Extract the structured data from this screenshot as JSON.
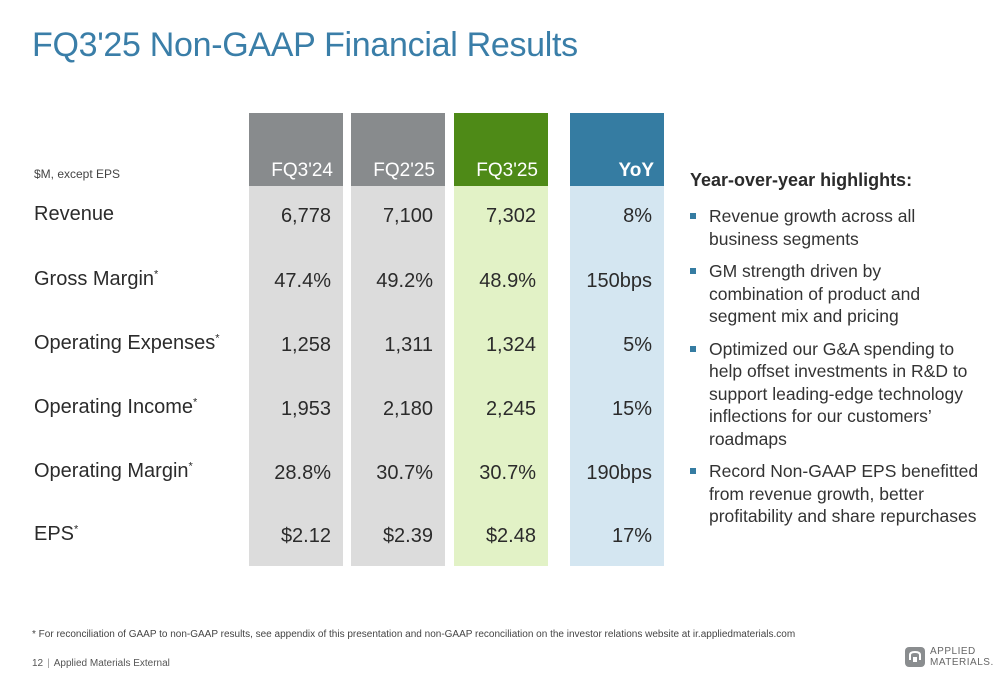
{
  "title": "FQ3'25 Non-GAAP Financial Results",
  "table": {
    "unit_note": "$M, except EPS",
    "columns": [
      "FQ3'24",
      "FQ2'25",
      "FQ3'25",
      "YoY"
    ],
    "rows": [
      {
        "label": "Revenue",
        "star": "",
        "values": [
          "6,778",
          "7,100",
          "7,302",
          "8%"
        ]
      },
      {
        "label": "Gross Margin",
        "star": "*",
        "values": [
          "47.4%",
          "49.2%",
          "48.9%",
          "150bps"
        ]
      },
      {
        "label": "Operating Expenses",
        "star": "*",
        "values": [
          "1,258",
          "1,311",
          "1,324",
          "5%"
        ]
      },
      {
        "label": "Operating Income",
        "star": "*",
        "values": [
          "1,953",
          "2,180",
          "2,245",
          "15%"
        ]
      },
      {
        "label": "Operating Margin",
        "star": "*",
        "values": [
          "28.8%",
          "30.7%",
          "30.7%",
          "190bps"
        ]
      },
      {
        "label": "EPS",
        "star": "*",
        "values": [
          "$2.12",
          "$2.39",
          "$2.48",
          "17%"
        ]
      }
    ]
  },
  "highlights": {
    "title": "Year-over-year highlights:",
    "items": [
      "Revenue growth across all business segments",
      "GM strength driven by combination of product and segment mix and pricing",
      "Optimized our G&A spending to help offset investments in R&D to support leading-edge technology inflections for our customers’ roadmaps",
      "Record Non-GAAP EPS benefitted from revenue growth, better profitability and share repurchases"
    ]
  },
  "footnote": "* For reconciliation of GAAP to non-GAAP results, see appendix of this presentation and non-GAAP reconciliation on the investor relations website at ir.appliedmaterials.com",
  "footer": {
    "page_number": "12",
    "separator": "|",
    "classification": "Applied Materials External"
  },
  "logo": {
    "line1": "APPLIED",
    "line2": "MATERIALS."
  },
  "colors": {
    "title": "#3a7ea8",
    "gray_header": "#888b8d",
    "green_header": "#4e8a17",
    "blue_header": "#357ca2",
    "gray_cell": "#dcdcdc",
    "green_cell": "#e2f2c6",
    "blue_cell": "#d4e6f1"
  }
}
